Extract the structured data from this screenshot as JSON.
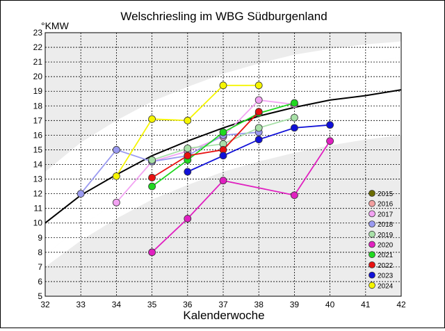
{
  "chart_data": {
    "type": "line",
    "title": "Welschriesling im WBG Südburgenland",
    "xlabel": "Kalenderwoche",
    "ylabel": "°KMW",
    "xlim": [
      32,
      42
    ],
    "ylim": [
      5,
      23
    ],
    "x_ticks": [
      32,
      33,
      34,
      35,
      36,
      37,
      38,
      39,
      40,
      41,
      42
    ],
    "y_ticks": [
      5,
      6,
      7,
      8,
      9,
      10,
      11,
      12,
      13,
      14,
      15,
      16,
      17,
      18,
      19,
      20,
      21,
      22,
      23
    ],
    "grid": true,
    "legend_position": "bottom-right",
    "reference_curve": {
      "x": [
        32,
        33,
        34,
        35,
        36,
        37,
        38,
        39,
        40,
        41,
        42
      ],
      "y": [
        10.0,
        11.9,
        13.3,
        14.6,
        15.6,
        16.5,
        17.3,
        17.9,
        18.4,
        18.7,
        19.1
      ]
    },
    "band_upper": {
      "x": [
        32,
        33,
        34,
        35,
        36,
        37,
        38,
        39,
        40,
        41,
        42
      ],
      "y_low": [
        12.5,
        14.3,
        15.8,
        17.0,
        18.0,
        18.9,
        19.6,
        20.2,
        20.7,
        21.0,
        21.3
      ],
      "y_high": [
        13.5,
        15.5,
        17.0,
        18.3,
        19.3,
        20.2,
        20.9,
        21.5,
        21.9,
        22.2,
        22.4
      ]
    },
    "band_lower": {
      "x": [
        32,
        33,
        34,
        35,
        36,
        37,
        38,
        39,
        40,
        41,
        42
      ],
      "y_low": [
        7.0,
        8.8,
        10.3,
        11.6,
        12.6,
        13.5,
        14.2,
        14.8,
        15.3,
        15.7,
        16.0
      ],
      "y_high": [
        7.8,
        9.8,
        11.4,
        12.7,
        13.7,
        14.6,
        15.3,
        15.9,
        16.3,
        16.6,
        16.9
      ]
    },
    "series": [
      {
        "name": "2015",
        "color": "#6b6b00",
        "x": [],
        "y": []
      },
      {
        "name": "2016",
        "color": "#f2a0a0",
        "x": [],
        "y": []
      },
      {
        "name": "2017",
        "color": "#f2a2f2",
        "x": [
          34,
          35,
          36,
          37,
          38,
          39
        ],
        "y": [
          11.4,
          14.2,
          14.9,
          15.9,
          18.4,
          18.1
        ]
      },
      {
        "name": "2018",
        "color": "#9a9af0",
        "x": [
          33,
          34,
          35,
          36,
          37,
          38
        ],
        "y": [
          12.0,
          15.0,
          14.2,
          14.6,
          16.0,
          16.2
        ]
      },
      {
        "name": "2019",
        "color": "#a8e0a8",
        "x": [
          35,
          36,
          37,
          38,
          39
        ],
        "y": [
          14.3,
          15.1,
          15.4,
          16.5,
          17.2
        ]
      },
      {
        "name": "2020",
        "color": "#e020c0",
        "x": [
          35,
          36,
          37,
          39,
          40
        ],
        "y": [
          8.0,
          10.3,
          12.9,
          11.9,
          15.6
        ]
      },
      {
        "name": "2021",
        "color": "#20d820",
        "x": [
          35,
          36,
          37,
          38,
          39
        ],
        "y": [
          12.5,
          14.3,
          16.2,
          17.5,
          18.2
        ]
      },
      {
        "name": "2022",
        "color": "#e81010",
        "x": [
          35,
          36,
          37,
          38
        ],
        "y": [
          13.1,
          14.6,
          15.0,
          17.6
        ]
      },
      {
        "name": "2023",
        "color": "#1010d8",
        "x": [
          36,
          37,
          38,
          39,
          40
        ],
        "y": [
          13.5,
          14.6,
          15.7,
          16.5,
          16.7
        ]
      },
      {
        "name": "2024",
        "color": "#f5f500",
        "x": [
          34,
          35,
          36,
          37,
          38
        ],
        "y": [
          13.2,
          17.1,
          17.0,
          19.4,
          19.4
        ]
      }
    ]
  }
}
